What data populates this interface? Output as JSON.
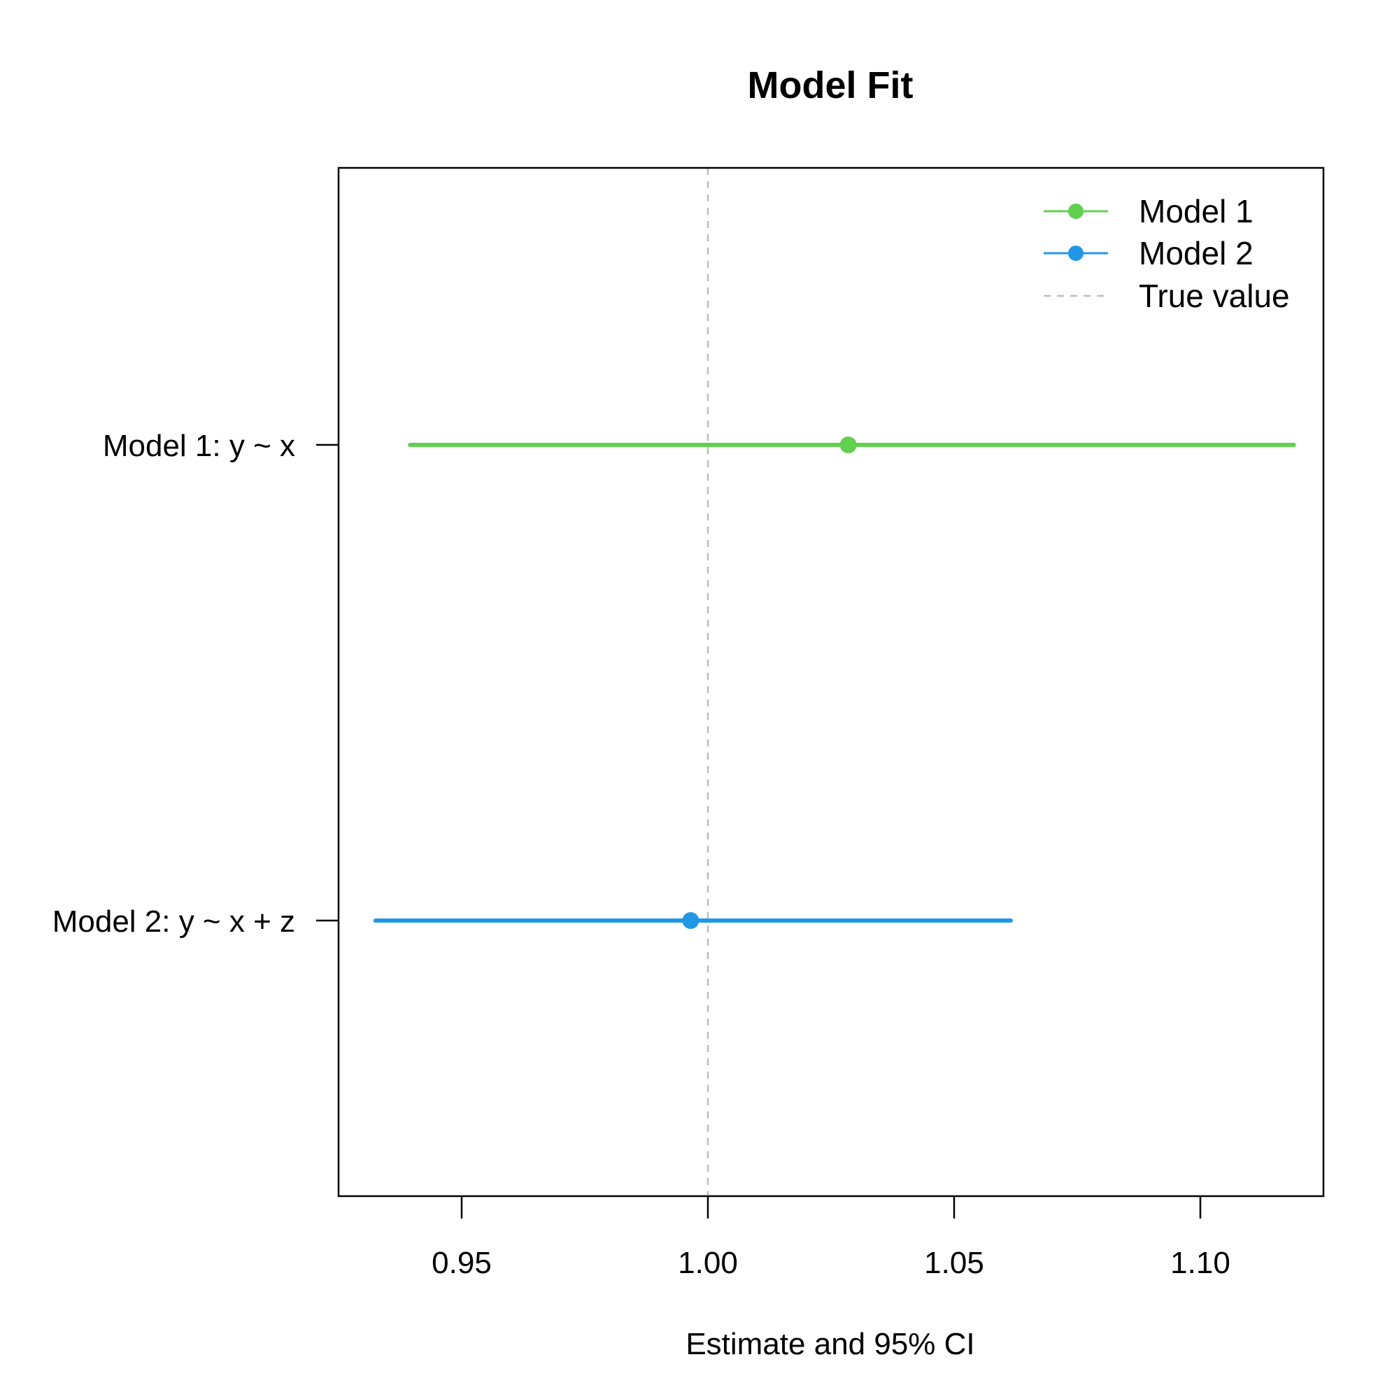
{
  "chart_data": {
    "type": "forest",
    "title": "Model Fit",
    "xlabel": "Estimate and 95% CI",
    "ylabel": "",
    "xlim": [
      0.925,
      1.125
    ],
    "x_ticks": [
      0.95,
      1.0,
      1.05,
      1.1
    ],
    "x_tick_labels": [
      "0.95",
      "1.00",
      "1.05",
      "1.10"
    ],
    "reference_line": {
      "value": 1.0,
      "label": "True value",
      "color": "#bdbdbd",
      "style": "dashed"
    },
    "models": [
      {
        "name": "Model 1",
        "label": "Model 1: y ~ x",
        "estimate": 1.0285,
        "ci_low": 0.9395,
        "ci_high": 1.119,
        "color": "#61D04F"
      },
      {
        "name": "Model 2",
        "label": "Model 2: y ~ x + z",
        "estimate": 0.9965,
        "ci_low": 0.9325,
        "ci_high": 1.0615,
        "color": "#2297E6"
      }
    ],
    "legend": {
      "position": "top-right",
      "entries": [
        {
          "label": "Model 1",
          "color": "#61D04F",
          "kind": "line-point"
        },
        {
          "label": "Model 2",
          "color": "#2297E6",
          "kind": "line-point"
        },
        {
          "label": "True value",
          "color": "#bdbdbd",
          "kind": "dashed"
        }
      ]
    },
    "grid": false
  }
}
